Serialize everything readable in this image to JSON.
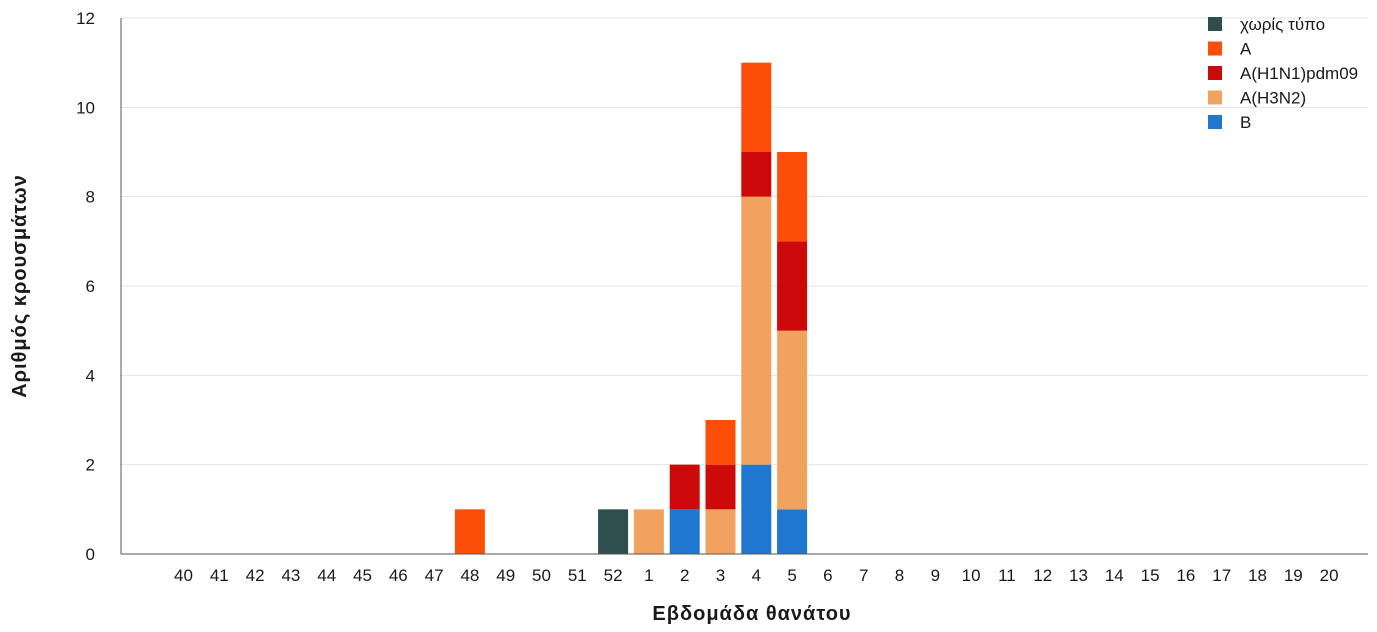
{
  "chart_data": {
    "type": "bar",
    "stacked": true,
    "categories": [
      "40",
      "41",
      "42",
      "43",
      "44",
      "45",
      "46",
      "47",
      "48",
      "49",
      "50",
      "51",
      "52",
      "1",
      "2",
      "3",
      "4",
      "5",
      "6",
      "7",
      "8",
      "9",
      "10",
      "11",
      "12",
      "13",
      "14",
      "15",
      "16",
      "17",
      "18",
      "19",
      "20"
    ],
    "series": [
      {
        "name": "B",
        "color": "#1f77d0",
        "values": [
          0,
          0,
          0,
          0,
          0,
          0,
          0,
          0,
          0,
          0,
          0,
          0,
          0,
          0,
          1,
          0,
          2,
          1,
          0,
          0,
          0,
          0,
          0,
          0,
          0,
          0,
          0,
          0,
          0,
          0,
          0,
          0,
          0
        ]
      },
      {
        "name": "A(H3N2)",
        "color": "#f2a25f",
        "values": [
          0,
          0,
          0,
          0,
          0,
          0,
          0,
          0,
          0,
          0,
          0,
          0,
          0,
          1,
          0,
          1,
          6,
          4,
          0,
          0,
          0,
          0,
          0,
          0,
          0,
          0,
          0,
          0,
          0,
          0,
          0,
          0,
          0
        ]
      },
      {
        "name": "A(H1N1)pdm09",
        "color": "#cc0a0a",
        "values": [
          0,
          0,
          0,
          0,
          0,
          0,
          0,
          0,
          0,
          0,
          0,
          0,
          0,
          0,
          1,
          1,
          1,
          2,
          0,
          0,
          0,
          0,
          0,
          0,
          0,
          0,
          0,
          0,
          0,
          0,
          0,
          0,
          0
        ]
      },
      {
        "name": "A",
        "color": "#fc4e08",
        "values": [
          0,
          0,
          0,
          0,
          0,
          0,
          0,
          0,
          1,
          0,
          0,
          0,
          0,
          0,
          0,
          1,
          2,
          2,
          0,
          0,
          0,
          0,
          0,
          0,
          0,
          0,
          0,
          0,
          0,
          0,
          0,
          0,
          0
        ]
      },
      {
        "name": "χωρίς τύπο",
        "color": "#2f4f4f",
        "values": [
          0,
          0,
          0,
          0,
          0,
          0,
          0,
          0,
          0,
          0,
          0,
          0,
          1,
          0,
          0,
          0,
          0,
          0,
          0,
          0,
          0,
          0,
          0,
          0,
          0,
          0,
          0,
          0,
          0,
          0,
          0,
          0,
          0
        ]
      }
    ],
    "legend_order": [
      "χωρίς τύπο",
      "A",
      "A(H1N1)pdm09",
      "A(H3N2)",
      "B"
    ],
    "legend_position": "top-right",
    "title": "",
    "xlabel": "Εβδομάδα θανάτου",
    "ylabel": "Αριθμός κρουσμάτων",
    "ylim": [
      0,
      12
    ],
    "yticks": [
      0,
      2,
      4,
      6,
      8,
      10,
      12
    ],
    "grid": "horizontal"
  }
}
